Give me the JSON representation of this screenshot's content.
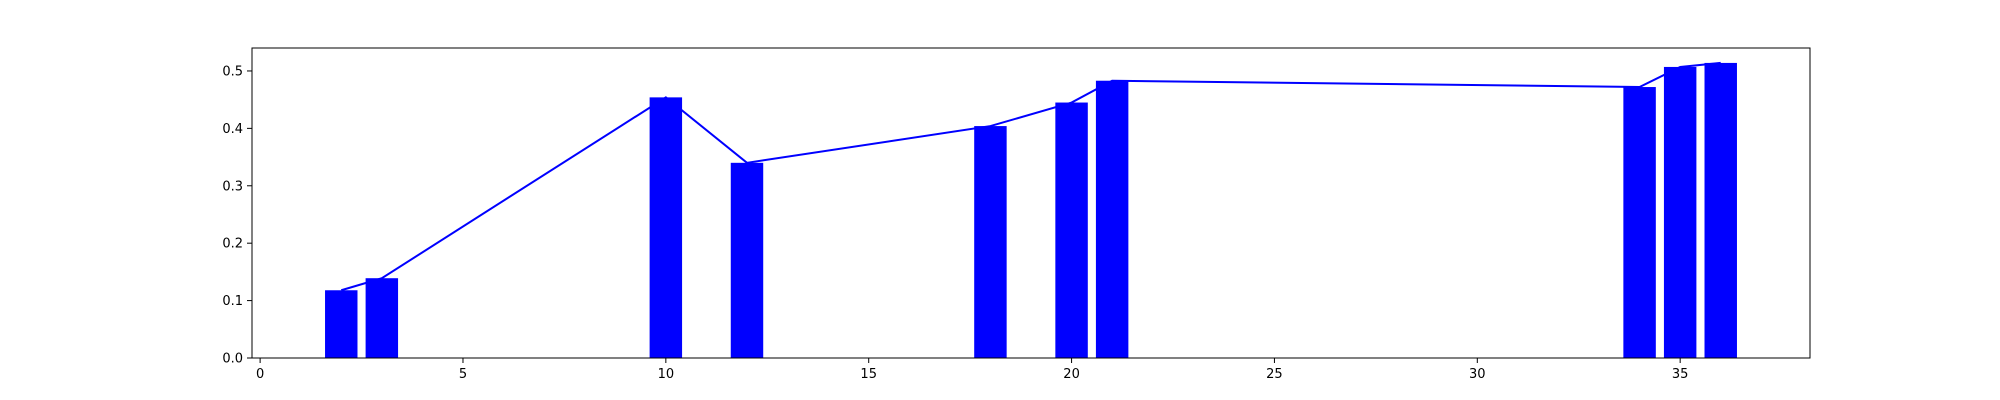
{
  "chart_data": {
    "type": "bar",
    "title": "",
    "xlabel": "",
    "ylabel": "",
    "xlim": [
      -0.2,
      38.2
    ],
    "ylim": [
      0,
      0.54
    ],
    "grid": false,
    "legend": "none",
    "bar_color": "#0000ff",
    "line_color": "#0000ff",
    "bar_width": 0.8,
    "xticks": [
      0,
      5,
      10,
      15,
      20,
      25,
      30,
      35
    ],
    "yticks": [
      0.0,
      0.1,
      0.2,
      0.3,
      0.4,
      0.5
    ],
    "xtick_labels": [
      "0",
      "5",
      "10",
      "15",
      "20",
      "25",
      "30",
      "35"
    ],
    "ytick_labels": [
      "0.0",
      "0.1",
      "0.2",
      "0.3",
      "0.4",
      "0.5"
    ],
    "x": [
      2,
      3,
      10,
      12,
      18,
      20,
      21,
      34,
      35,
      36
    ],
    "values": [
      0.118,
      0.139,
      0.454,
      0.34,
      0.404,
      0.445,
      0.483,
      0.472,
      0.507,
      0.514
    ],
    "series": [
      {
        "kind": "bar",
        "values": [
          0.118,
          0.139,
          0.454,
          0.34,
          0.404,
          0.445,
          0.483,
          0.472,
          0.507,
          0.514
        ]
      },
      {
        "kind": "line",
        "values": [
          0.118,
          0.139,
          0.454,
          0.34,
          0.404,
          0.445,
          0.483,
          0.472,
          0.507,
          0.514
        ]
      }
    ]
  }
}
